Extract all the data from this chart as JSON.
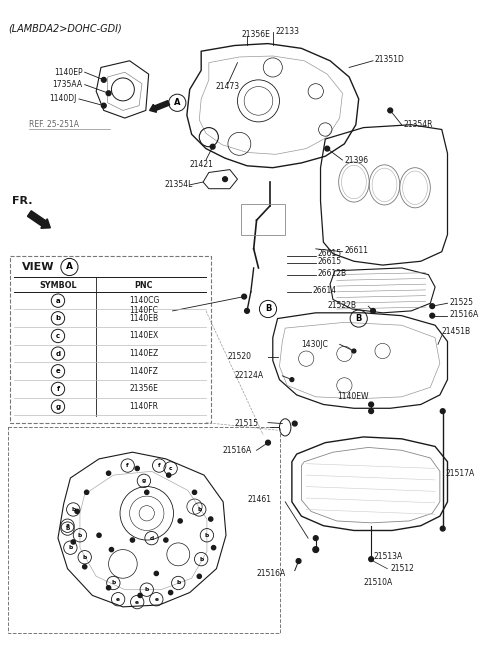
{
  "title": "(LAMBDA2>DOHC-GDI)",
  "bg_color": "#ffffff",
  "line_color": "#1a1a1a",
  "fig_width": 4.8,
  "fig_height": 6.6,
  "dpi": 100,
  "view_table": {
    "symbols": [
      "a",
      "b",
      "c",
      "d",
      "e",
      "f",
      "g"
    ],
    "pncs": [
      "1140CG",
      "1140EB",
      "1140EX",
      "1140EZ",
      "1140FZ",
      "21356E",
      "1140FR"
    ]
  }
}
